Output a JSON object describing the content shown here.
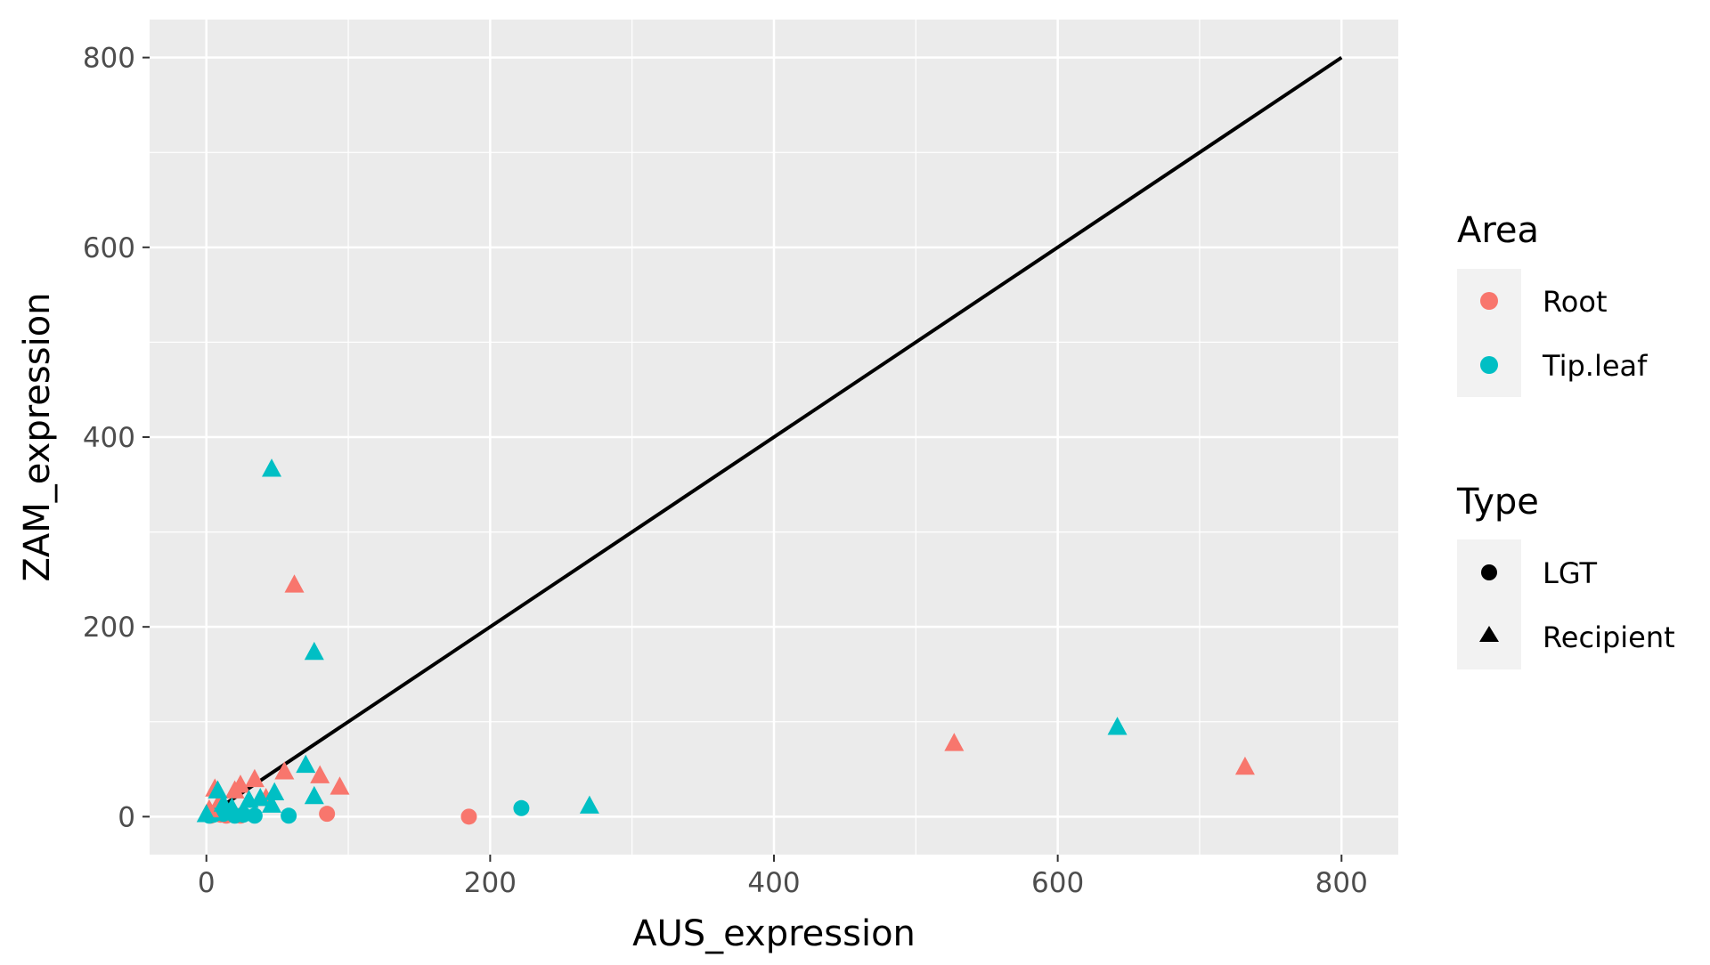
{
  "chart_data": {
    "type": "scatter",
    "title": "",
    "xlabel": "AUS_expression",
    "ylabel": "ZAM_expression",
    "xlim": [
      -40,
      840
    ],
    "ylim": [
      -40,
      840
    ],
    "x_ticks": [
      0,
      200,
      400,
      600,
      800
    ],
    "y_ticks": [
      0,
      200,
      400,
      600,
      800
    ],
    "x_tick_labels": [
      "0",
      "200",
      "400",
      "600",
      "800"
    ],
    "y_tick_labels": [
      "0",
      "200",
      "400",
      "600",
      "800"
    ],
    "grid": true,
    "background": "#ebebeb",
    "reference_line": {
      "x": [
        0,
        800
      ],
      "y": [
        0,
        800
      ],
      "color": "#000000"
    },
    "legend": {
      "position": "right",
      "area": {
        "title": "Area",
        "items": [
          {
            "label": "Root",
            "color": "#F8766D"
          },
          {
            "label": "Tip.leaf",
            "color": "#00BFC4"
          }
        ]
      },
      "type": {
        "title": "Type",
        "items": [
          {
            "label": "LGT",
            "shape": "circle"
          },
          {
            "label": "Recipient",
            "shape": "triangle"
          }
        ]
      }
    },
    "series": [
      {
        "area": "Root",
        "type": "LGT",
        "color": "#F8766D",
        "shape": "circle",
        "points": [
          [
            3,
            1
          ],
          [
            6,
            3
          ],
          [
            10,
            2
          ],
          [
            14,
            1
          ],
          [
            18,
            2
          ],
          [
            24,
            1
          ],
          [
            85,
            3
          ],
          [
            185,
            0
          ]
        ]
      },
      {
        "area": "Tip.leaf",
        "type": "LGT",
        "color": "#00BFC4",
        "shape": "circle",
        "points": [
          [
            2,
            1
          ],
          [
            5,
            2
          ],
          [
            12,
            3
          ],
          [
            20,
            1
          ],
          [
            26,
            2
          ],
          [
            34,
            1
          ],
          [
            58,
            1
          ],
          [
            222,
            9
          ]
        ]
      },
      {
        "area": "Root",
        "type": "Recipient",
        "color": "#F8766D",
        "shape": "triangle",
        "points": [
          [
            2,
            8
          ],
          [
            6,
            30
          ],
          [
            10,
            18
          ],
          [
            20,
            28
          ],
          [
            24,
            34
          ],
          [
            34,
            40
          ],
          [
            42,
            20
          ],
          [
            55,
            48
          ],
          [
            62,
            245
          ],
          [
            80,
            44
          ],
          [
            94,
            32
          ],
          [
            527,
            78
          ],
          [
            732,
            53
          ]
        ]
      },
      {
        "area": "Tip.leaf",
        "type": "Recipient",
        "color": "#00BFC4",
        "shape": "triangle",
        "points": [
          [
            0,
            3
          ],
          [
            8,
            28
          ],
          [
            12,
            14
          ],
          [
            18,
            10
          ],
          [
            26,
            6
          ],
          [
            30,
            18
          ],
          [
            38,
            20
          ],
          [
            46,
            13
          ],
          [
            48,
            26
          ],
          [
            46,
            367
          ],
          [
            70,
            55
          ],
          [
            76,
            22
          ],
          [
            76,
            174
          ],
          [
            270,
            12
          ],
          [
            642,
            95
          ]
        ]
      }
    ]
  }
}
